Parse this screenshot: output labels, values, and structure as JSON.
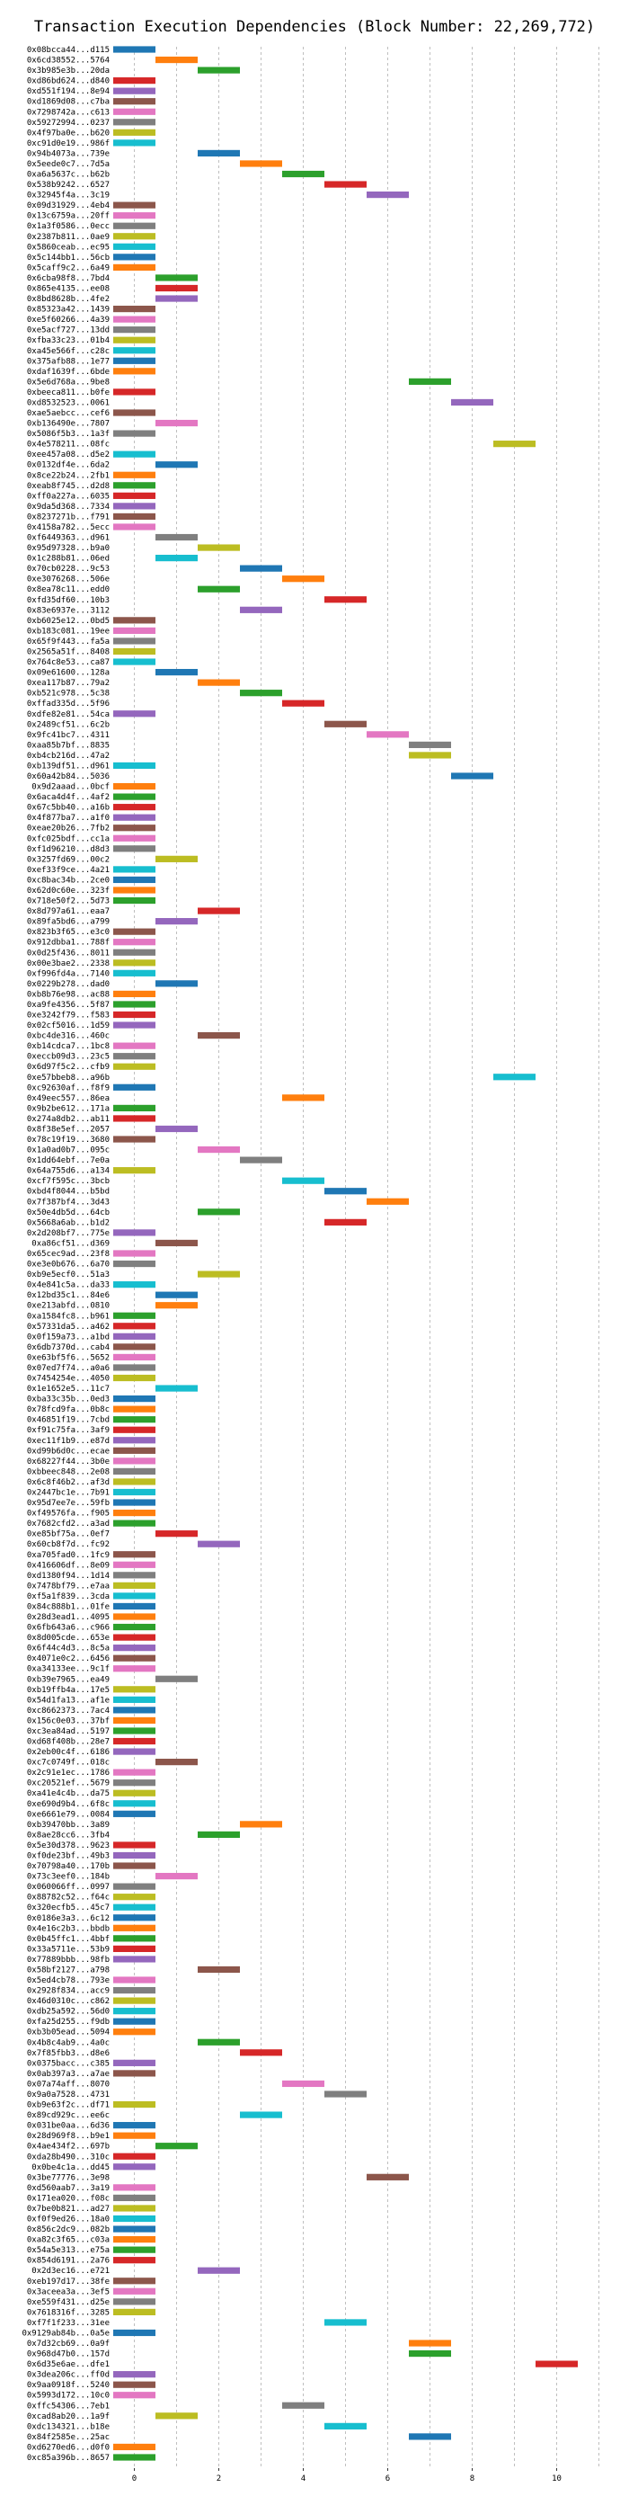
{
  "chart_data": {
    "type": "bar",
    "title": "Transaction Execution Dependencies (Block Number: 22,269,772)",
    "xlabel": "",
    "ylabel": "",
    "xlim": [
      -0.5,
      11.5
    ],
    "xticks": [
      0,
      2,
      4,
      6,
      8,
      10
    ],
    "grid": "vertical dashed",
    "legend": "none",
    "colors": [
      "#1f77b4",
      "#ff7f0e",
      "#2ca02c",
      "#d62728",
      "#9467bd",
      "#8c564b",
      "#e377c2",
      "#7f7f7f",
      "#bcbd22",
      "#17becf"
    ],
    "transactions": [
      {
        "label": "0x08bcca44...d115",
        "level": 0
      },
      {
        "label": "0x6cd38552...5764",
        "level": 1
      },
      {
        "label": "0x3b985e3b...20da",
        "level": 2
      },
      {
        "label": "0xd86bd624...d840",
        "level": 0
      },
      {
        "label": "0xd551f194...8e94",
        "level": 0
      },
      {
        "label": "0xd1869d08...c7ba",
        "level": 0
      },
      {
        "label": "0x7298742a...c613",
        "level": 0
      },
      {
        "label": "0x59272994...0237",
        "level": 0
      },
      {
        "label": "0x4f97ba0e...b620",
        "level": 0
      },
      {
        "label": "0xc91d0e19...986f",
        "level": 0
      },
      {
        "label": "0x94b4073a...739e",
        "level": 2
      },
      {
        "label": "0x5eede0c7...7d5a",
        "level": 3
      },
      {
        "label": "0xa6a5637c...b62b",
        "level": 4
      },
      {
        "label": "0x538b9242...6527",
        "level": 5
      },
      {
        "label": "0x32945f4a...3c19",
        "level": 6
      },
      {
        "label": "0x09d31929...4eb4",
        "level": 0
      },
      {
        "label": "0x13c6759a...20ff",
        "level": 0
      },
      {
        "label": "0x1a3f0586...0ecc",
        "level": 0
      },
      {
        "label": "0x2387b811...0ae9",
        "level": 0
      },
      {
        "label": "0x5860ceab...ec95",
        "level": 0
      },
      {
        "label": "0x5c144bb1...56cb",
        "level": 0
      },
      {
        "label": "0x5caff9c2...6a49",
        "level": 0
      },
      {
        "label": "0x6cba98f8...7bd4",
        "level": 1
      },
      {
        "label": "0x865e4135...ee08",
        "level": 1
      },
      {
        "label": "0x8bd8628b...4fe2",
        "level": 1
      },
      {
        "label": "0x85323a42...1439",
        "level": 0
      },
      {
        "label": "0xe5f60266...4a39",
        "level": 0
      },
      {
        "label": "0xe5acf727...13dd",
        "level": 0
      },
      {
        "label": "0xfba33c23...01b4",
        "level": 0
      },
      {
        "label": "0xa45e566f...c28c",
        "level": 0
      },
      {
        "label": "0x375afb88...1e77",
        "level": 0
      },
      {
        "label": "0xdaf1639f...6bde",
        "level": 0
      },
      {
        "label": "0x5e6d768a...9be8",
        "level": 7
      },
      {
        "label": "0xbeeca811...b0fe",
        "level": 0
      },
      {
        "label": "0xd8532523...0061",
        "level": 8
      },
      {
        "label": "0xae5aebcc...cef6",
        "level": 0
      },
      {
        "label": "0xb136490e...7807",
        "level": 1
      },
      {
        "label": "0x5086f5b3...1a3f",
        "level": 0
      },
      {
        "label": "0x4e578211...08fc",
        "level": 9
      },
      {
        "label": "0xee457a08...d5e2",
        "level": 0
      },
      {
        "label": "0x0132df4e...6da2",
        "level": 1
      },
      {
        "label": "0x8ce22b24...2fb1",
        "level": 0
      },
      {
        "label": "0xeab8f745...d2d8",
        "level": 0
      },
      {
        "label": "0xff0a227a...6035",
        "level": 0
      },
      {
        "label": "0x9da5d368...7334",
        "level": 0
      },
      {
        "label": "0x8237271b...f791",
        "level": 0
      },
      {
        "label": "0x4158a782...5ecc",
        "level": 0
      },
      {
        "label": "0xf6449363...d961",
        "level": 1
      },
      {
        "label": "0x95d97328...b9a0",
        "level": 2
      },
      {
        "label": "0x1c288b81...06ed",
        "level": 1
      },
      {
        "label": "0x70cb0228...9c53",
        "level": 3
      },
      {
        "label": "0xe3076268...506e",
        "level": 4
      },
      {
        "label": "0x8ea78c11...edd0",
        "level": 2
      },
      {
        "label": "0xfd35df60...10b3",
        "level": 5
      },
      {
        "label": "0x83e6937e...3112",
        "level": 3
      },
      {
        "label": "0xb6025e12...0bd5",
        "level": 0
      },
      {
        "label": "0xb183c081...19ee",
        "level": 0
      },
      {
        "label": "0x65f9f443...fa5a",
        "level": 0
      },
      {
        "label": "0x2565a51f...8408",
        "level": 0
      },
      {
        "label": "0x764c8e53...ca87",
        "level": 0
      },
      {
        "label": "0x09e61600...128a",
        "level": 1
      },
      {
        "label": "0xea117b87...79a2",
        "level": 2
      },
      {
        "label": "0xb521c978...5c38",
        "level": 3
      },
      {
        "label": "0xffad335d...5f96",
        "level": 4
      },
      {
        "label": "0xdfe82e81...54ca",
        "level": 0
      },
      {
        "label": "0x2489cf51...6c2b",
        "level": 5
      },
      {
        "label": "0x9fc41bc7...4311",
        "level": 6
      },
      {
        "label": "0xaa85b7bf...8835",
        "level": 7
      },
      {
        "label": "0xb4cb216d...47a2",
        "level": 7
      },
      {
        "label": "0xb139df51...d961",
        "level": 0
      },
      {
        "label": "0x60a42b84...5036",
        "level": 8
      },
      {
        "label": "0x9d2aaad...0bcf",
        "level": 0
      },
      {
        "label": "0x6aca4d4f...4af2",
        "level": 0
      },
      {
        "label": "0x67c5bb40...a16b",
        "level": 0
      },
      {
        "label": "0x4f877ba7...a1f0",
        "level": 0
      },
      {
        "label": "0xeae20b26...7fb2",
        "level": 0
      },
      {
        "label": "0xfc025bdf...cc1a",
        "level": 0
      },
      {
        "label": "0xf1d96210...d8d3",
        "level": 0
      },
      {
        "label": "0x3257fd69...00c2",
        "level": 1
      },
      {
        "label": "0xef33f9ce...4a21",
        "level": 0
      },
      {
        "label": "0xc8bac34b...2ce0",
        "level": 0
      },
      {
        "label": "0x62d0c60e...323f",
        "level": 0
      },
      {
        "label": "0x718e50f2...5d73",
        "level": 0
      },
      {
        "label": "0x8d797a61...eaa7",
        "level": 2
      },
      {
        "label": "0x89fa5bd6...a799",
        "level": 1
      },
      {
        "label": "0x823b3f65...e3c0",
        "level": 0
      },
      {
        "label": "0x912dbba1...788f",
        "level": 0
      },
      {
        "label": "0x0d25f436...8011",
        "level": 0
      },
      {
        "label": "0x00e3bae2...2338",
        "level": 0
      },
      {
        "label": "0xf996fd4a...7140",
        "level": 0
      },
      {
        "label": "0x0229b278...dad0",
        "level": 1
      },
      {
        "label": "0xb8b76e98...ac88",
        "level": 0
      },
      {
        "label": "0xa9fe4356...5f87",
        "level": 0
      },
      {
        "label": "0xe3242f79...f583",
        "level": 0
      },
      {
        "label": "0x02cf5016...1d59",
        "level": 0
      },
      {
        "label": "0xbc4de316...460c",
        "level": 2
      },
      {
        "label": "0xb14cdca7...1bc8",
        "level": 0
      },
      {
        "label": "0xeccb09d3...23c5",
        "level": 0
      },
      {
        "label": "0x6d97f5c2...cfb9",
        "level": 0
      },
      {
        "label": "0xe57bbeb8...a96b",
        "level": 9
      },
      {
        "label": "0xc92630af...f8f9",
        "level": 0
      },
      {
        "label": "0x49eec557...86ea",
        "level": 4
      },
      {
        "label": "0x9b2be612...171a",
        "level": 0
      },
      {
        "label": "0x274a8db2...ab11",
        "level": 0
      },
      {
        "label": "0x8f38e5ef...2057",
        "level": 1
      },
      {
        "label": "0x78c19f19...3680",
        "level": 0
      },
      {
        "label": "0x1a0ad0b7...095c",
        "level": 2
      },
      {
        "label": "0x1dd64ebf...7e0a",
        "level": 3
      },
      {
        "label": "0x64a755d6...a134",
        "level": 0
      },
      {
        "label": "0xcf7f595c...3bcb",
        "level": 4
      },
      {
        "label": "0xbd4f8044...b5bd",
        "level": 5
      },
      {
        "label": "0x7f387bf4...3d43",
        "level": 6
      },
      {
        "label": "0x50e4db5d...64cb",
        "level": 2
      },
      {
        "label": "0x5668a6ab...b1d2",
        "level": 5
      },
      {
        "label": "0x2d208bf7...775e",
        "level": 0
      },
      {
        "label": "0xa86cf51...d369",
        "level": 1
      },
      {
        "label": "0x65cec9ad...23f8",
        "level": 0
      },
      {
        "label": "0xe3e0b676...6a70",
        "level": 0
      },
      {
        "label": "0xb9e5ecf0...51a3",
        "level": 2
      },
      {
        "label": "0x4e841c5a...da33",
        "level": 0
      },
      {
        "label": "0x12bd35c1...84e6",
        "level": 1
      },
      {
        "label": "0xe213abfd...0810",
        "level": 1
      },
      {
        "label": "0xa1584fc8...b961",
        "level": 0
      },
      {
        "label": "0x57331da5...a462",
        "level": 0
      },
      {
        "label": "0x0f159a73...a1bd",
        "level": 0
      },
      {
        "label": "0x6db7370d...cab4",
        "level": 0
      },
      {
        "label": "0xe63bf5f6...5652",
        "level": 0
      },
      {
        "label": "0x07ed7f74...a0a6",
        "level": 0
      },
      {
        "label": "0x7454254e...4050",
        "level": 0
      },
      {
        "label": "0x1e1652e5...11c7",
        "level": 1
      },
      {
        "label": "0xba33c35b...0ed3",
        "level": 0
      },
      {
        "label": "0x78fcd9fa...0b8c",
        "level": 0
      },
      {
        "label": "0x46851f19...7cbd",
        "level": 0
      },
      {
        "label": "0xf91c75fa...3af9",
        "level": 0
      },
      {
        "label": "0xec11f1b9...e87d",
        "level": 0
      },
      {
        "label": "0xd99b6d0c...ecae",
        "level": 0
      },
      {
        "label": "0x68227f44...3b0e",
        "level": 0
      },
      {
        "label": "0xbbeec848...2e08",
        "level": 0
      },
      {
        "label": "0x6c8f46b2...af3d",
        "level": 0
      },
      {
        "label": "0x2447bc1e...7b91",
        "level": 0
      },
      {
        "label": "0x95d7ee7e...59fb",
        "level": 0
      },
      {
        "label": "0xf49576fa...f905",
        "level": 0
      },
      {
        "label": "0x7682cfd2...a3ad",
        "level": 0
      },
      {
        "label": "0xe85bf75a...0ef7",
        "level": 1
      },
      {
        "label": "0x60cb8f7d...fc92",
        "level": 2
      },
      {
        "label": "0xa705fad0...1fc9",
        "level": 0
      },
      {
        "label": "0x416606df...8e09",
        "level": 0
      },
      {
        "label": "0xd1380f94...1d14",
        "level": 0
      },
      {
        "label": "0x7478bf79...e7aa",
        "level": 0
      },
      {
        "label": "0xf5a1f839...3cda",
        "level": 0
      },
      {
        "label": "0x84c888b1...01fe",
        "level": 0
      },
      {
        "label": "0x28d3ead1...4095",
        "level": 0
      },
      {
        "label": "0x6fb643a6...c966",
        "level": 0
      },
      {
        "label": "0x8d005cde...653e",
        "level": 0
      },
      {
        "label": "0x6f44c4d3...8c5a",
        "level": 0
      },
      {
        "label": "0x4071e0c2...6456",
        "level": 0
      },
      {
        "label": "0xa34133ee...9c1f",
        "level": 0
      },
      {
        "label": "0xb39e7965...ea49",
        "level": 1
      },
      {
        "label": "0xb19ffb4a...17e5",
        "level": 0
      },
      {
        "label": "0x54d1fa13...af1e",
        "level": 0
      },
      {
        "label": "0xc8662373...7ac4",
        "level": 0
      },
      {
        "label": "0x156c0e03...37bf",
        "level": 0
      },
      {
        "label": "0xc3ea84ad...5197",
        "level": 0
      },
      {
        "label": "0xd68f408b...28e7",
        "level": 0
      },
      {
        "label": "0x2eb00c4f...6186",
        "level": 0
      },
      {
        "label": "0xc7c0749f...018c",
        "level": 1
      },
      {
        "label": "0x2c91e1ec...1786",
        "level": 0
      },
      {
        "label": "0xc20521ef...5679",
        "level": 0
      },
      {
        "label": "0xa41e4c4b...da75",
        "level": 0
      },
      {
        "label": "0xe690d9b4...6f8c",
        "level": 0
      },
      {
        "label": "0xe6661e79...0084",
        "level": 0
      },
      {
        "label": "0xb39470bb...3a89",
        "level": 3
      },
      {
        "label": "0x8ae28cc6...3fb4",
        "level": 2
      },
      {
        "label": "0x5e30d378...9623",
        "level": 0
      },
      {
        "label": "0xf0de23bf...49b3",
        "level": 0
      },
      {
        "label": "0x70798a40...170b",
        "level": 0
      },
      {
        "label": "0x73c3eef0...184b",
        "level": 1
      },
      {
        "label": "0x060066ff...0997",
        "level": 0
      },
      {
        "label": "0x88782c52...f64c",
        "level": 0
      },
      {
        "label": "0x320ecfb5...45c7",
        "level": 0
      },
      {
        "label": "0x0186e3a3...6c12",
        "level": 0
      },
      {
        "label": "0x4e16c2b3...bbdb",
        "level": 0
      },
      {
        "label": "0x0b45ffc1...4bbf",
        "level": 0
      },
      {
        "label": "0x33a5711e...53b9",
        "level": 0
      },
      {
        "label": "0x77889bbb...98fb",
        "level": 0
      },
      {
        "label": "0x58bf2127...a798",
        "level": 2
      },
      {
        "label": "0x5ed4cb78...793e",
        "level": 0
      },
      {
        "label": "0x2928f834...acc9",
        "level": 0
      },
      {
        "label": "0x46d0310c...c862",
        "level": 0
      },
      {
        "label": "0xdb25a592...56d0",
        "level": 0
      },
      {
        "label": "0xfa25d255...f9db",
        "level": 0
      },
      {
        "label": "0xb3b05ead...5094",
        "level": 0
      },
      {
        "label": "0x4b8c4ab9...4a0c",
        "level": 2
      },
      {
        "label": "0x7f85fbb3...d8e6",
        "level": 3
      },
      {
        "label": "0x0375bacc...c385",
        "level": 0
      },
      {
        "label": "0x0ab397a3...a7ae",
        "level": 0
      },
      {
        "label": "0x07a74aff...8070",
        "level": 4
      },
      {
        "label": "0x9a0a7528...4731",
        "level": 5
      },
      {
        "label": "0xb9e63f2c...df71",
        "level": 0
      },
      {
        "label": "0x89cd929c...ee6c",
        "level": 3
      },
      {
        "label": "0x031be0aa...6d36",
        "level": 0
      },
      {
        "label": "0x28d969f8...b9e1",
        "level": 0
      },
      {
        "label": "0x4ae434f2...697b",
        "level": 1
      },
      {
        "label": "0xda28b490...310c",
        "level": 0
      },
      {
        "label": "0x0be4c1a...dd45",
        "level": 0
      },
      {
        "label": "0x3be77776...3e98",
        "level": 6
      },
      {
        "label": "0xd560aab7...3a19",
        "level": 0
      },
      {
        "label": "0x171ea020...f08c",
        "level": 0
      },
      {
        "label": "0x7be0b821...ad27",
        "level": 0
      },
      {
        "label": "0xf0f9ed26...18a0",
        "level": 0
      },
      {
        "label": "0x856c2dc9...082b",
        "level": 0
      },
      {
        "label": "0xa82c3f65...c03a",
        "level": 0
      },
      {
        "label": "0x54a5e313...e75a",
        "level": 0
      },
      {
        "label": "0x854d6191...2a76",
        "level": 0
      },
      {
        "label": "0x2d3ec16...e721",
        "level": 2
      },
      {
        "label": "0xeb197d17...38fe",
        "level": 0
      },
      {
        "label": "0x3aceea3a...3ef5",
        "level": 0
      },
      {
        "label": "0xe559f431...d25e",
        "level": 0
      },
      {
        "label": "0x7618316f...3285",
        "level": 0
      },
      {
        "label": "0xf7f1f233...31ee",
        "level": 5
      },
      {
        "label": "0x9129ab84b...0a5e",
        "level": 0
      },
      {
        "label": "0x7d32cb69...0a9f",
        "level": 7
      },
      {
        "label": "0x968d47b0...157d",
        "level": 7
      },
      {
        "label": "0x6d35e6ae...dfe1",
        "level": 10
      },
      {
        "label": "0x3dea206c...ff0d",
        "level": 0
      },
      {
        "label": "0x9aa0918f...5240",
        "level": 0
      },
      {
        "label": "0x5993d172...10c0",
        "level": 0
      },
      {
        "label": "0xffc54306...7eb1",
        "level": 4
      },
      {
        "label": "0xcad8ab20...1a9f",
        "level": 1
      },
      {
        "label": "0xdc134321...b18e",
        "level": 5
      },
      {
        "label": "0x84f2585e...25ac",
        "level": 7
      },
      {
        "label": "0xd6270ed6...d0f0",
        "level": 0
      },
      {
        "label": "0xc85a396b...8657",
        "level": 0
      }
    ]
  }
}
